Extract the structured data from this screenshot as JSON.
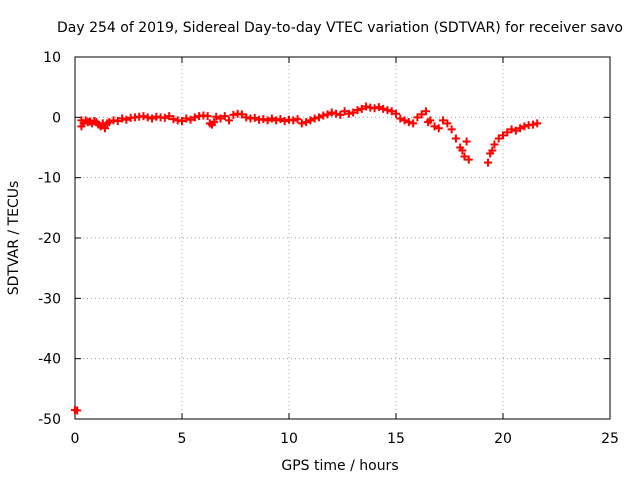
{
  "chart_data": {
    "type": "scatter",
    "title": "Day 254 of 2019, Sidereal Day-to-day VTEC variation (SDTVAR) for receiver savo",
    "xlabel": "GPS time / hours",
    "ylabel": "SDTVAR / TECUs",
    "xlim": [
      0,
      25
    ],
    "ylim": [
      -50,
      10
    ],
    "xticks": [
      0,
      5,
      10,
      15,
      20,
      25
    ],
    "yticks": [
      10,
      0,
      -10,
      -20,
      -30,
      -40,
      -50
    ],
    "grid": true,
    "marker": "plus",
    "series": [
      {
        "name": "SDTVAR",
        "color": "#ff0000",
        "x": [
          0.0,
          0.1,
          0.3,
          0.3,
          0.4,
          0.5,
          0.6,
          0.7,
          0.8,
          0.9,
          1.0,
          1.1,
          1.2,
          1.3,
          1.4,
          1.5,
          1.6,
          1.8,
          2.0,
          2.2,
          2.4,
          2.6,
          2.8,
          3.0,
          3.2,
          3.4,
          3.6,
          3.8,
          4.0,
          4.2,
          4.4,
          4.6,
          4.8,
          5.0,
          5.2,
          5.4,
          5.6,
          5.8,
          6.0,
          6.2,
          6.3,
          6.4,
          6.5,
          6.6,
          6.8,
          7.0,
          7.2,
          7.4,
          7.6,
          7.8,
          8.0,
          8.2,
          8.4,
          8.6,
          8.8,
          9.0,
          9.2,
          9.4,
          9.6,
          9.8,
          10.0,
          10.2,
          10.4,
          10.6,
          10.8,
          11.0,
          11.2,
          11.4,
          11.6,
          11.8,
          12.0,
          12.2,
          12.4,
          12.6,
          12.8,
          13.0,
          13.2,
          13.4,
          13.6,
          13.8,
          14.0,
          14.2,
          14.4,
          14.6,
          14.8,
          15.0,
          15.2,
          15.4,
          15.6,
          15.8,
          16.0,
          16.2,
          16.4,
          16.5,
          16.6,
          16.8,
          17.0,
          17.2,
          17.4,
          17.6,
          17.8,
          18.0,
          18.1,
          18.2,
          18.3,
          18.4,
          19.3,
          19.4,
          19.5,
          19.6,
          19.8,
          20.0,
          20.2,
          20.4,
          20.6,
          20.8,
          21.0,
          21.2,
          21.4,
          21.6
        ],
        "y": [
          -48.5,
          -48.6,
          -1.5,
          -0.5,
          -1.0,
          -0.5,
          -0.8,
          -0.7,
          -1.0,
          -0.6,
          -0.8,
          -1.2,
          -1.5,
          -1.0,
          -1.8,
          -1.0,
          -0.8,
          -0.5,
          -0.6,
          -0.2,
          -0.4,
          -0.1,
          0.0,
          0.1,
          0.2,
          0.0,
          -0.2,
          0.1,
          0.0,
          -0.1,
          0.2,
          -0.3,
          -0.5,
          -0.6,
          -0.2,
          -0.4,
          0.0,
          0.2,
          0.3,
          0.2,
          -1.0,
          -1.2,
          -0.8,
          0.1,
          -0.2,
          0.2,
          -0.5,
          0.4,
          0.6,
          0.5,
          0.0,
          -0.2,
          -0.1,
          -0.4,
          -0.3,
          -0.5,
          -0.2,
          -0.5,
          -0.3,
          -0.6,
          -0.4,
          -0.5,
          -0.3,
          -1.0,
          -0.8,
          -0.5,
          -0.2,
          0.0,
          0.3,
          0.5,
          0.8,
          0.6,
          0.4,
          1.0,
          0.6,
          0.8,
          1.2,
          1.4,
          1.8,
          1.6,
          1.5,
          1.7,
          1.4,
          1.2,
          1.0,
          0.6,
          -0.2,
          -0.5,
          -0.8,
          -1.0,
          0.0,
          0.5,
          1.0,
          -0.8,
          -0.5,
          -1.5,
          -1.8,
          -0.5,
          -1.0,
          -2.0,
          -3.5,
          -5.0,
          -5.5,
          -6.5,
          -4.0,
          -7.0,
          -7.5,
          -6.0,
          -5.5,
          -4.5,
          -3.5,
          -3.0,
          -2.5,
          -2.0,
          -2.2,
          -1.8,
          -1.5,
          -1.3,
          -1.2,
          -1.0
        ]
      }
    ]
  }
}
